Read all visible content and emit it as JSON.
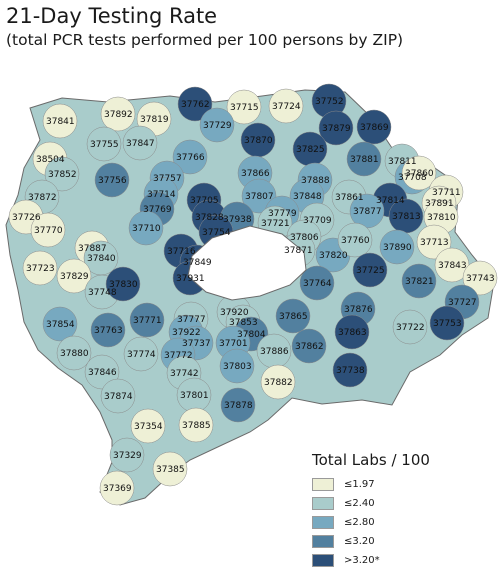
{
  "title": "21-Day Testing Rate",
  "subtitle": "(total PCR tests performed per 100 persons by ZIP)",
  "legend": {
    "title": "Total Labs / 100",
    "items": [
      {
        "label": "≤1.97",
        "color": "#eef0d6"
      },
      {
        "label": "≤2.40",
        "color": "#a9cccb"
      },
      {
        "label": "≤2.80",
        "color": "#77a9c0"
      },
      {
        "label": "≤3.20",
        "color": "#52809f"
      },
      {
        "label": ">3.20*",
        "color": "#2c4f78"
      }
    ]
  },
  "zip_labels": [
    "37762",
    "37715",
    "37724",
    "37752",
    "37841",
    "37892",
    "37819",
    "37729",
    "37879",
    "37869",
    "37870",
    "37825",
    "37755",
    "37847",
    "37766",
    "37881",
    "37811",
    "38504",
    "37852",
    "37708",
    "37860",
    "37756",
    "37757",
    "37866",
    "37888",
    "37711",
    "37872",
    "37714",
    "37807",
    "37848",
    "37861",
    "37814",
    "37891",
    "37726",
    "37769",
    "37705",
    "37779",
    "37877",
    "37813",
    "37810",
    "37770",
    "37710",
    "37828",
    "37938",
    "37721",
    "37709",
    "37887",
    "37754",
    "37806",
    "37871",
    "37820",
    "37760",
    "37890",
    "37713",
    "37723",
    "37840",
    "37716",
    "37849",
    "37843",
    "37829",
    "37931",
    "37725",
    "37743",
    "37748",
    "37830",
    "37821",
    "37764",
    "37920",
    "37727",
    "37876",
    "37854",
    "37771",
    "37777",
    "37853",
    "37865",
    "37753",
    "37763",
    "37922",
    "37804",
    "37737",
    "37701",
    "37722",
    "37863",
    "37886",
    "37880",
    "37774",
    "37772",
    "37862",
    "37846",
    "37742",
    "37882",
    "37738",
    "37803",
    "37801",
    "37874",
    "37878",
    "37354",
    "37885",
    "37329",
    "37385",
    "37369"
  ]
}
